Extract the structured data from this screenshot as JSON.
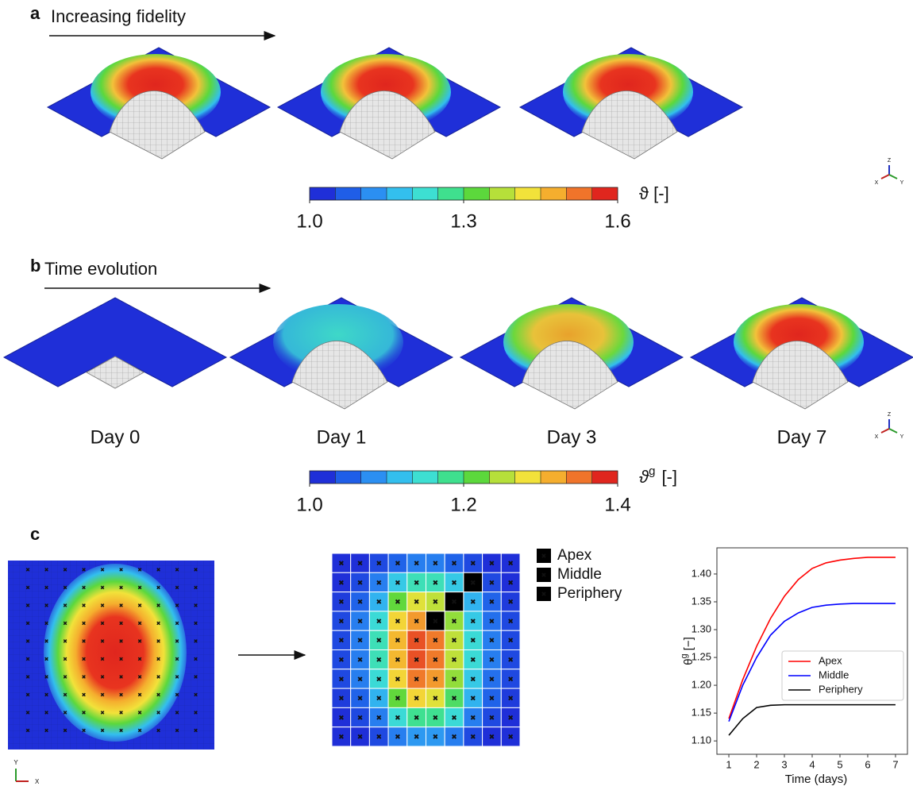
{
  "panel_a": {
    "letter": "a",
    "heading": "Increasing fidelity",
    "colorbar": {
      "symbol": "ϑ [-]",
      "colors": [
        "#1f2fd8",
        "#1f5ee8",
        "#2b8ff2",
        "#33bfee",
        "#3ddfd2",
        "#3fe08e",
        "#5cd83c",
        "#b6e03a",
        "#f2e23a",
        "#f5ae2e",
        "#f0742a",
        "#e0261e"
      ],
      "ticks": [
        {
          "value": 1,
          "label": "1.0"
        },
        1.3,
        1.6
      ]
    },
    "triad": [
      "Z",
      "X",
      "Y"
    ]
  },
  "panel_b": {
    "letter": "b",
    "heading": "Time evolution",
    "days": [
      "Day 0",
      "Day 1",
      "Day 3",
      "Day 7"
    ],
    "colorbar": {
      "symbol": "ϑ",
      "symbol_sup": "g",
      "symbol_unit": "[-]",
      "colors": [
        "#1f2fd8",
        "#1f5ee8",
        "#2b8ff2",
        "#33bfee",
        "#3ddfd2",
        "#3fe08e",
        "#5cd83c",
        "#b6e03a",
        "#f2e23a",
        "#f5ae2e",
        "#f0742a",
        "#e0261e"
      ],
      "ticks": [
        {
          "value": 1,
          "label": "1.0"
        },
        1.2,
        1.4
      ]
    },
    "triad": [
      "Z",
      "X",
      "Y"
    ]
  },
  "panel_c": {
    "letter": "c",
    "axes": [
      "Y",
      "X"
    ],
    "legend": [
      "Apex",
      "Middle",
      "Periphery"
    ],
    "grid_values": [
      [
        1.0,
        1.0,
        1.02,
        1.04,
        1.06,
        1.06,
        1.04,
        1.02,
        1.0,
        1.0
      ],
      [
        1.0,
        1.02,
        1.06,
        1.12,
        1.16,
        1.16,
        1.12,
        1.06,
        1.02,
        1.0
      ],
      [
        1.01,
        1.04,
        1.1,
        1.22,
        1.28,
        1.26,
        1.2,
        1.1,
        1.04,
        1.01
      ],
      [
        1.02,
        1.06,
        1.14,
        1.3,
        1.34,
        1.32,
        1.24,
        1.12,
        1.05,
        1.02
      ],
      [
        1.02,
        1.06,
        1.16,
        1.32,
        1.38,
        1.36,
        1.26,
        1.14,
        1.06,
        1.02
      ],
      [
        1.02,
        1.06,
        1.16,
        1.32,
        1.38,
        1.36,
        1.26,
        1.14,
        1.06,
        1.02
      ],
      [
        1.02,
        1.06,
        1.14,
        1.3,
        1.36,
        1.34,
        1.24,
        1.12,
        1.05,
        1.02
      ],
      [
        1.01,
        1.04,
        1.1,
        1.22,
        1.3,
        1.28,
        1.2,
        1.1,
        1.04,
        1.01
      ],
      [
        1.0,
        1.02,
        1.06,
        1.14,
        1.18,
        1.18,
        1.14,
        1.06,
        1.02,
        1.0
      ],
      [
        1.0,
        1.0,
        1.02,
        1.06,
        1.08,
        1.08,
        1.06,
        1.02,
        1.0,
        1.0
      ]
    ]
  },
  "chart_data": {
    "type": "line",
    "xlabel": "Time (days)",
    "ylabel": "θ",
    "ylabel_sup": "g",
    "ylabel_unit": "[−]",
    "x": [
      1,
      1.5,
      2,
      2.5,
      3,
      3.5,
      4,
      4.5,
      5,
      5.5,
      6,
      6.5,
      7
    ],
    "series": [
      {
        "name": "Apex",
        "color": "#ff0000",
        "values": [
          1.14,
          1.21,
          1.27,
          1.32,
          1.36,
          1.39,
          1.41,
          1.42,
          1.425,
          1.428,
          1.43,
          1.43,
          1.43
        ]
      },
      {
        "name": "Middle",
        "color": "#0000ff",
        "values": [
          1.135,
          1.2,
          1.25,
          1.29,
          1.315,
          1.33,
          1.34,
          1.344,
          1.346,
          1.347,
          1.347,
          1.347,
          1.347
        ]
      },
      {
        "name": "Periphery",
        "color": "#000000",
        "values": [
          1.11,
          1.14,
          1.16,
          1.164,
          1.165,
          1.165,
          1.165,
          1.165,
          1.165,
          1.165,
          1.165,
          1.165,
          1.165
        ]
      }
    ],
    "xlim": [
      0.57,
      7.43
    ],
    "ylim": [
      1.076,
      1.447
    ],
    "xticks": [
      1,
      2,
      3,
      4,
      5,
      6,
      7
    ],
    "yticks": [
      {
        "value": 1.1,
        "label": "1.10"
      },
      1.15,
      {
        "value": 1.2,
        "label": "1.20"
      },
      1.25,
      {
        "value": 1.3,
        "label": "1.30"
      },
      1.35,
      {
        "value": 1.4,
        "label": "1.40"
      }
    ],
    "legend": "center right"
  }
}
